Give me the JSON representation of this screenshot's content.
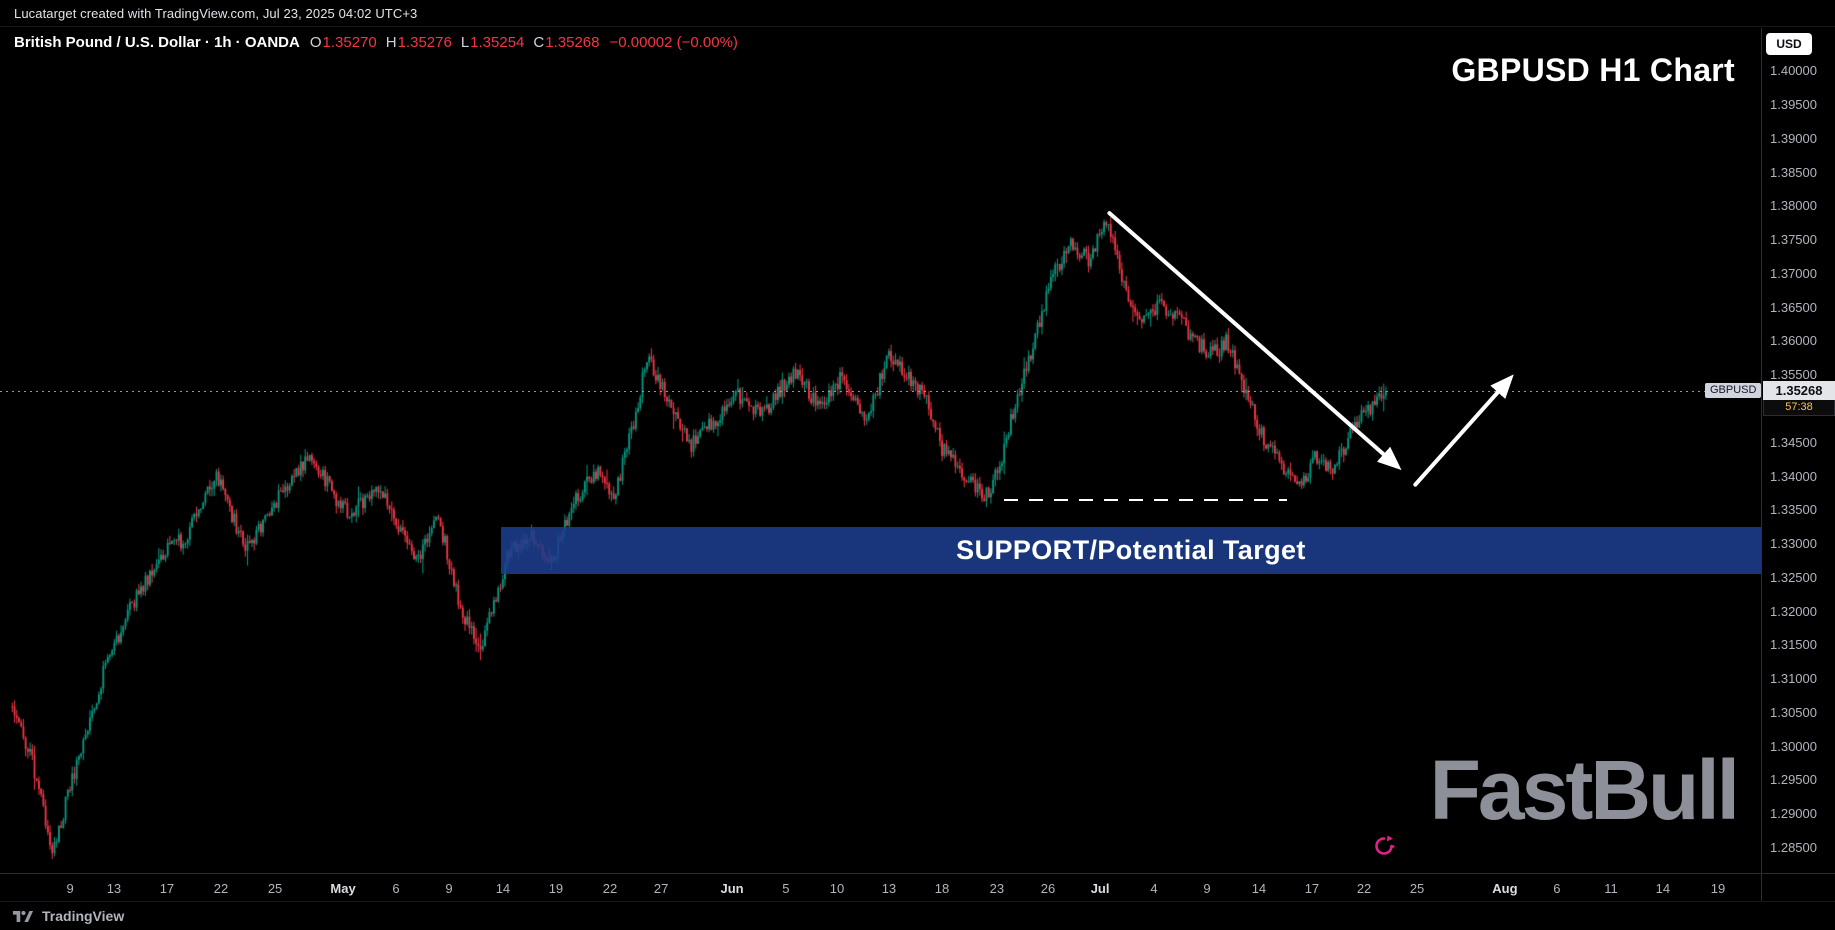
{
  "header": {
    "attribution": "Lucatarget created with TradingView.com, Jul 23, 2025 04:02 UTC+3",
    "symbol_line": {
      "title": "British Pound / U.S. Dollar · 1h · OANDA",
      "ohlc": [
        {
          "label": "O",
          "value": "1.35270"
        },
        {
          "label": "H",
          "value": "1.35276"
        },
        {
          "label": "L",
          "value": "1.35254"
        },
        {
          "label": "C",
          "value": "1.35268"
        }
      ],
      "change": "−0.00002 (−0.00%)"
    },
    "currency_button": "USD",
    "chart_title": "GBPUSD H1 Chart"
  },
  "chart_data": {
    "type": "candlestick",
    "title": "GBPUSD H1 Chart",
    "symbol": "GBPUSD",
    "pair": "British Pound / U.S. Dollar",
    "interval": "1h",
    "exchange": "OANDA",
    "up_color": "#089981",
    "down_color": "#f23645",
    "grid": false,
    "y_axis": {
      "min": 1.2813,
      "max": 1.4064,
      "tick_step": 0.005,
      "ticks": [
        "1.40000",
        "1.39500",
        "1.39000",
        "1.38500",
        "1.38000",
        "1.37500",
        "1.37000",
        "1.36500",
        "1.36000",
        "1.35500",
        "1.35000",
        "1.34500",
        "1.34000",
        "1.33500",
        "1.33000",
        "1.32500",
        "1.32000",
        "1.31500",
        "1.31000",
        "1.30500",
        "1.30000",
        "1.29500",
        "1.29000",
        "1.28500"
      ]
    },
    "x_axis": {
      "labels": [
        {
          "text": "9",
          "t": 0.0398,
          "month": false
        },
        {
          "text": "13",
          "t": 0.0647,
          "month": false
        },
        {
          "text": "17",
          "t": 0.0948,
          "month": false
        },
        {
          "text": "22",
          "t": 0.1255,
          "month": false
        },
        {
          "text": "25",
          "t": 0.1562,
          "month": false
        },
        {
          "text": "May",
          "t": 0.1948,
          "month": true
        },
        {
          "text": "6",
          "t": 0.2249,
          "month": false
        },
        {
          "text": "9",
          "t": 0.255,
          "month": false
        },
        {
          "text": "14",
          "t": 0.2856,
          "month": false
        },
        {
          "text": "19",
          "t": 0.3157,
          "month": false
        },
        {
          "text": "22",
          "t": 0.3464,
          "month": false
        },
        {
          "text": "27",
          "t": 0.3754,
          "month": false
        },
        {
          "text": "Jun",
          "t": 0.4157,
          "month": true
        },
        {
          "text": "5",
          "t": 0.4463,
          "month": false
        },
        {
          "text": "10",
          "t": 0.4753,
          "month": false
        },
        {
          "text": "13",
          "t": 0.5048,
          "month": false
        },
        {
          "text": "18",
          "t": 0.5349,
          "month": false
        },
        {
          "text": "23",
          "t": 0.5661,
          "month": false
        },
        {
          "text": "26",
          "t": 0.5951,
          "month": false
        },
        {
          "text": "Jul",
          "t": 0.6247,
          "month": true
        },
        {
          "text": "4",
          "t": 0.6553,
          "month": false
        },
        {
          "text": "9",
          "t": 0.6854,
          "month": false
        },
        {
          "text": "14",
          "t": 0.7149,
          "month": false
        },
        {
          "text": "17",
          "t": 0.745,
          "month": false
        },
        {
          "text": "22",
          "t": 0.7746,
          "month": false
        },
        {
          "text": "25",
          "t": 0.8047,
          "month": false
        },
        {
          "text": "Aug",
          "t": 0.8546,
          "month": true
        },
        {
          "text": "6",
          "t": 0.8841,
          "month": false
        },
        {
          "text": "11",
          "t": 0.9148,
          "month": false
        },
        {
          "text": "14",
          "t": 0.9443,
          "month": false
        },
        {
          "text": "19",
          "t": 0.9756,
          "month": false
        }
      ]
    },
    "price_path": [
      {
        "t": 0.007,
        "p": 1.306
      },
      {
        "t": 0.018,
        "p": 1.298
      },
      {
        "t": 0.03,
        "p": 1.2845
      },
      {
        "t": 0.044,
        "p": 1.298
      },
      {
        "t": 0.06,
        "p": 1.312
      },
      {
        "t": 0.075,
        "p": 1.321
      },
      {
        "t": 0.09,
        "p": 1.328
      },
      {
        "t": 0.105,
        "p": 1.331
      },
      {
        "t": 0.123,
        "p": 1.34
      },
      {
        "t": 0.14,
        "p": 1.329
      },
      {
        "t": 0.158,
        "p": 1.337
      },
      {
        "t": 0.176,
        "p": 1.3435
      },
      {
        "t": 0.19,
        "p": 1.337
      },
      {
        "t": 0.199,
        "p": 1.334
      },
      {
        "t": 0.212,
        "p": 1.3385
      },
      {
        "t": 0.219,
        "p": 1.3365
      },
      {
        "t": 0.236,
        "p": 1.327
      },
      {
        "t": 0.249,
        "p": 1.334
      },
      {
        "t": 0.262,
        "p": 1.32
      },
      {
        "t": 0.273,
        "p": 1.3145
      },
      {
        "t": 0.289,
        "p": 1.329
      },
      {
        "t": 0.302,
        "p": 1.331
      },
      {
        "t": 0.312,
        "p": 1.3265
      },
      {
        "t": 0.325,
        "p": 1.336
      },
      {
        "t": 0.339,
        "p": 1.341
      },
      {
        "t": 0.349,
        "p": 1.337
      },
      {
        "t": 0.36,
        "p": 1.348
      },
      {
        "t": 0.367,
        "p": 1.3575
      },
      {
        "t": 0.379,
        "p": 1.352
      },
      {
        "t": 0.392,
        "p": 1.3445
      },
      {
        "t": 0.405,
        "p": 1.348
      },
      {
        "t": 0.419,
        "p": 1.352
      },
      {
        "t": 0.432,
        "p": 1.349
      },
      {
        "t": 0.445,
        "p": 1.3535
      },
      {
        "t": 0.452,
        "p": 1.3555
      },
      {
        "t": 0.465,
        "p": 1.35
      },
      {
        "t": 0.478,
        "p": 1.355
      },
      {
        "t": 0.492,
        "p": 1.348
      },
      {
        "t": 0.505,
        "p": 1.3585
      },
      {
        "t": 0.515,
        "p": 1.355
      },
      {
        "t": 0.525,
        "p": 1.352
      },
      {
        "t": 0.535,
        "p": 1.344
      },
      {
        "t": 0.548,
        "p": 1.34
      },
      {
        "t": 0.561,
        "p": 1.337
      },
      {
        "t": 0.568,
        "p": 1.342
      },
      {
        "t": 0.575,
        "p": 1.349
      },
      {
        "t": 0.585,
        "p": 1.358
      },
      {
        "t": 0.598,
        "p": 1.37
      },
      {
        "t": 0.608,
        "p": 1.3745
      },
      {
        "t": 0.618,
        "p": 1.372
      },
      {
        "t": 0.628,
        "p": 1.378
      },
      {
        "t": 0.633,
        "p": 1.374
      },
      {
        "t": 0.638,
        "p": 1.368
      },
      {
        "t": 0.648,
        "p": 1.363
      },
      {
        "t": 0.658,
        "p": 1.3655
      },
      {
        "t": 0.668,
        "p": 1.364
      },
      {
        "t": 0.678,
        "p": 1.36
      },
      {
        "t": 0.688,
        "p": 1.358
      },
      {
        "t": 0.697,
        "p": 1.36
      },
      {
        "t": 0.708,
        "p": 1.352
      },
      {
        "t": 0.718,
        "p": 1.345
      },
      {
        "t": 0.727,
        "p": 1.342
      },
      {
        "t": 0.738,
        "p": 1.3385
      },
      {
        "t": 0.747,
        "p": 1.343
      },
      {
        "t": 0.758,
        "p": 1.341
      },
      {
        "t": 0.767,
        "p": 1.347
      },
      {
        "t": 0.777,
        "p": 1.35
      },
      {
        "t": 0.787,
        "p": 1.3527
      }
    ],
    "last_price": "1.35268",
    "last_price_value": 1.35268,
    "countdown": "57:38",
    "price_line_symbol_badge": "GBPUSD",
    "support_zone": {
      "label": "SUPPORT/Potential Target",
      "price_top": 1.3325,
      "price_bottom": 1.3255,
      "t_start": 0.2845,
      "t_end": 1.0,
      "color": "#1d3e8f"
    },
    "dashed_level": {
      "price": 1.3365,
      "t_start": 0.57,
      "t_end": 0.731
    },
    "arrows": [
      {
        "from": {
          "t": 0.63,
          "p": 1.379
        },
        "to": {
          "t": 0.7935,
          "p": 1.3415
        }
      },
      {
        "from": {
          "t": 0.8037,
          "p": 1.3388
        },
        "to": {
          "t": 0.8575,
          "p": 1.3545
        }
      }
    ]
  },
  "watermark": {
    "brand": "FastBull"
  },
  "footer": {
    "logo_text": "TradingView"
  },
  "colors": {
    "background": "#000000",
    "axis_text": "#b2b5be",
    "axis_border": "#2a2e39",
    "drawing": "#ffffff",
    "support_box": "#1d3e8f",
    "fastbull_pink": "#e0218a",
    "countdown_yellow": "#f7c948"
  }
}
